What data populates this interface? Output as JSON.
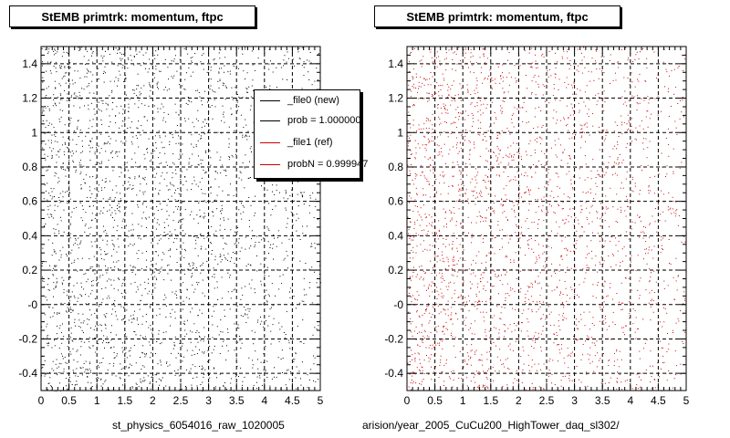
{
  "titles": {
    "left": "StEMB primtrk: momentum, ftpc",
    "right": "StEMB primtrk: momentum, ftpc"
  },
  "captions": {
    "left": "st_physics_6054016_raw_1020005",
    "right": "arision/year_2005_CuCu200_HighTower_daq_sl302/"
  },
  "footer_stamp": "",
  "legend": {
    "entries": [
      {
        "label": "_file0 (new)",
        "color": "#000000"
      },
      {
        "label": "prob = 1.000000",
        "color": "#000000"
      },
      {
        "label": "_file1 (ref)",
        "color": "#cc0000"
      },
      {
        "label": "probN = 0.999947",
        "color": "#cc0000"
      }
    ]
  },
  "chart_data": [
    {
      "type": "scatter",
      "title": "StEMB primtrk: momentum, ftpc",
      "xlabel": "st_physics_6054016_raw_1020005",
      "ylabel": "",
      "xlim": [
        0,
        5
      ],
      "ylim": [
        -0.5,
        1.5
      ],
      "xticks": [
        0,
        0.5,
        1,
        1.5,
        2,
        2.5,
        3,
        3.5,
        4,
        4.5,
        5
      ],
      "xtick_labels": [
        "0",
        "0.5",
        "1",
        "1.5",
        "2",
        "2.5",
        "3",
        "3.5",
        "4",
        "4.5",
        "5"
      ],
      "yticks": [
        -0.4,
        -0.2,
        0.0,
        0.2,
        0.4,
        0.6,
        0.8,
        1.0,
        1.2,
        1.4
      ],
      "ytick_labels": [
        "-0.4",
        "-0.2",
        "-0",
        "0.2",
        "0.4",
        "0.6",
        "0.8",
        "1",
        "1.2",
        "1.4"
      ],
      "grid": true,
      "legend_position": "top-right",
      "series": [
        {
          "name": "_file0 (new)",
          "color": "#000000",
          "n_points": 2600,
          "density_profile": "decreasing-with-x",
          "seed": 11
        }
      ]
    },
    {
      "type": "scatter",
      "title": "StEMB primtrk: momentum, ftpc",
      "xlabel": "arision/year_2005_CuCu200_HighTower_daq_sl302/",
      "ylabel": "",
      "xlim": [
        0,
        5
      ],
      "ylim": [
        -0.5,
        1.5
      ],
      "xticks": [
        0,
        0.5,
        1,
        1.5,
        2,
        2.5,
        3,
        3.5,
        4,
        4.5,
        5
      ],
      "xtick_labels": [
        "0",
        "0.5",
        "1",
        "1.5",
        "2",
        "2.5",
        "3",
        "3.5",
        "4",
        "4.5",
        "5"
      ],
      "yticks": [
        -0.4,
        -0.2,
        0.0,
        0.2,
        0.4,
        0.6,
        0.8,
        1.0,
        1.2,
        1.4
      ],
      "ytick_labels": [
        "-0.4",
        "-0.2",
        "-0",
        "0.2",
        "0.4",
        "0.6",
        "0.8",
        "1",
        "1.2",
        "1.4"
      ],
      "grid": true,
      "legend_position": "none",
      "series": [
        {
          "name": "_file1 (ref)",
          "color": "#cc0000",
          "n_points": 2600,
          "density_profile": "decreasing-with-x",
          "seed": 29
        }
      ]
    }
  ]
}
